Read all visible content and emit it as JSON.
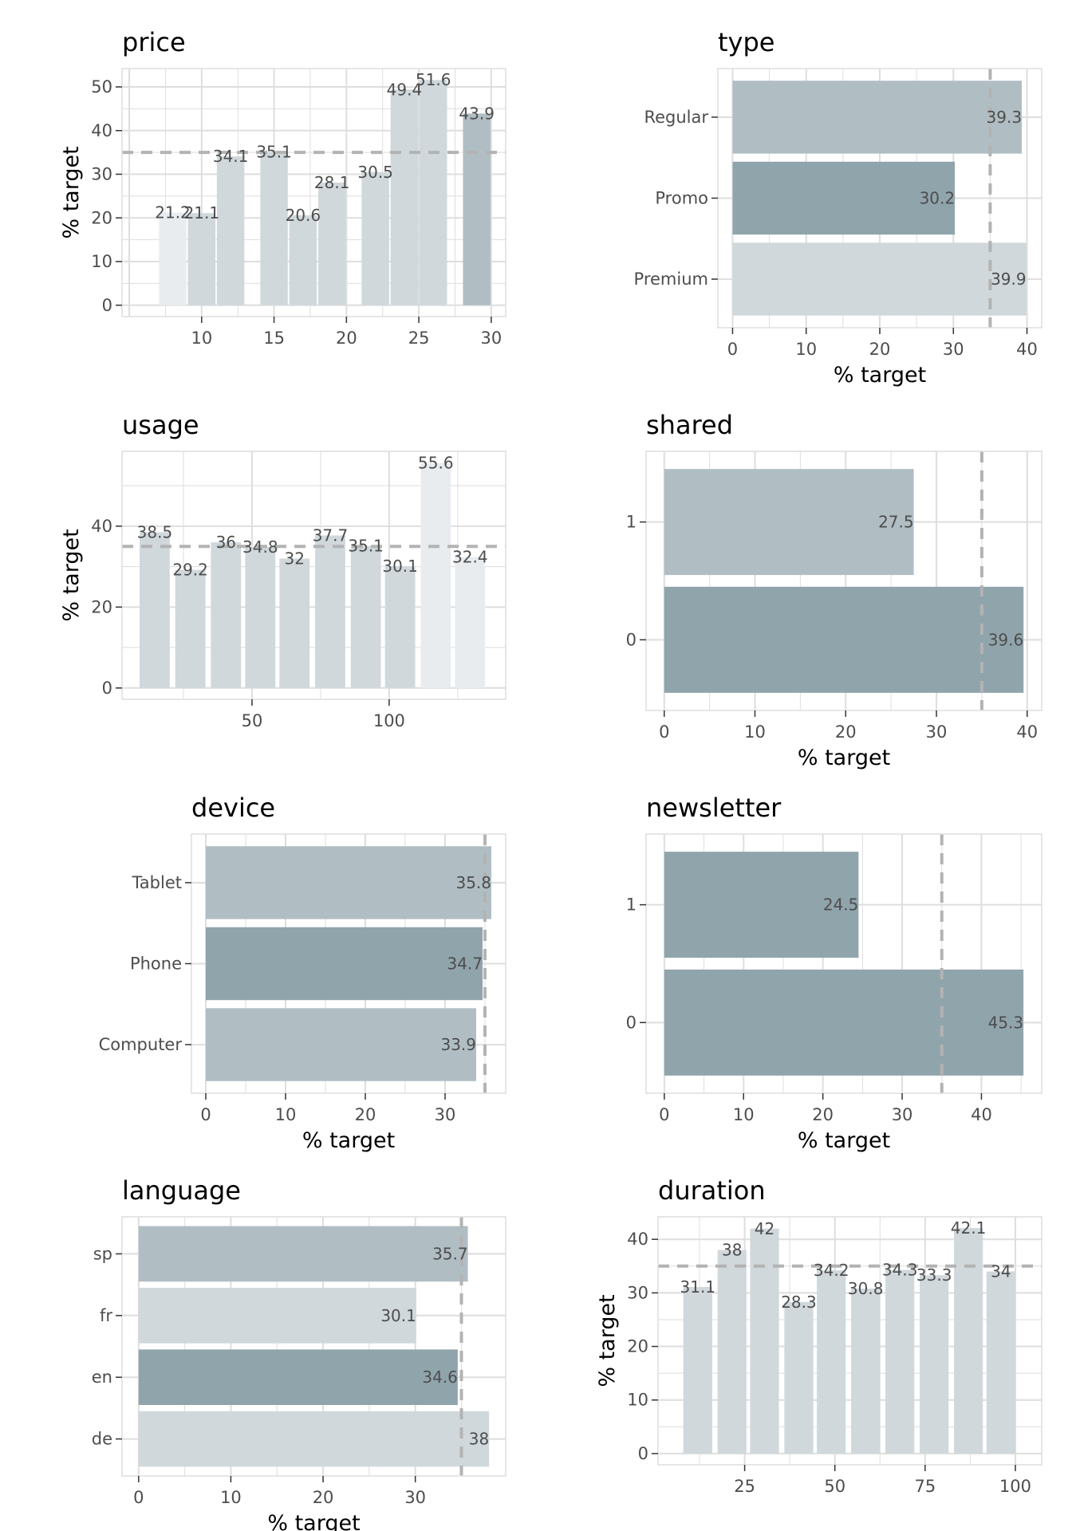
{
  "colors": {
    "light": "#e8ecef",
    "mid": "#d0d8dc",
    "mid2": "#b0bec4",
    "dark": "#90a4ac",
    "grid": "#dedede",
    "ref_line": "#b3b3b3"
  },
  "chart_data": [
    {
      "id": "price",
      "type": "bar",
      "orientation": "vertical",
      "title": "price",
      "ylabel": "% target",
      "xlabel": "",
      "xlim": [
        4.5,
        31
      ],
      "ylim": [
        -2.6,
        54.2
      ],
      "xticks": [
        10,
        15,
        20,
        25,
        30
      ],
      "yticks": [
        0,
        10,
        20,
        30,
        40,
        50
      ],
      "bar_width": 1.9,
      "reference_line": 35,
      "points": [
        {
          "x": 8.0,
          "value": 21.2,
          "label": "21.2",
          "shade": "light"
        },
        {
          "x": 10.0,
          "value": 21.1,
          "label": "21.1",
          "shade": "mid"
        },
        {
          "x": 12.0,
          "value": 34.1,
          "label": "34.1",
          "shade": "mid"
        },
        {
          "x": 15.0,
          "value": 35.1,
          "label": "35.1",
          "shade": "mid"
        },
        {
          "x": 17.0,
          "value": 20.6,
          "label": "20.6",
          "shade": "mid"
        },
        {
          "x": 19.0,
          "value": 28.1,
          "label": "28.1",
          "shade": "mid"
        },
        {
          "x": 22.0,
          "value": 30.5,
          "label": "30.5",
          "shade": "mid"
        },
        {
          "x": 24.0,
          "value": 49.4,
          "label": "49.4",
          "shade": "mid"
        },
        {
          "x": 26.0,
          "value": 51.6,
          "label": "51.6",
          "shade": "mid"
        },
        {
          "x": 29.0,
          "value": 43.9,
          "label": "43.9",
          "shade": "mid2"
        }
      ]
    },
    {
      "id": "type",
      "type": "bar",
      "orientation": "horizontal",
      "title": "type",
      "xlabel": "% target",
      "ylabel": "",
      "xlim": [
        -2,
        42
      ],
      "xticks": [
        0,
        10,
        20,
        30,
        40
      ],
      "reference_line": 35,
      "categories": [
        "Regular",
        "Promo",
        "Premium"
      ],
      "values": [
        39.3,
        30.2,
        39.9
      ],
      "labels": [
        "39.3",
        "30.2",
        "39.9"
      ],
      "shades": [
        "mid2",
        "dark",
        "mid"
      ]
    },
    {
      "id": "usage",
      "type": "bar",
      "orientation": "vertical",
      "title": "usage",
      "ylabel": "% target",
      "xlabel": "",
      "xlim": [
        2.6,
        142.5
      ],
      "ylim": [
        -2.8,
        58.5
      ],
      "xticks": [
        50,
        100
      ],
      "yticks": [
        0,
        20,
        40
      ],
      "bar_width": 11,
      "reference_line": 35,
      "points": [
        {
          "x": 14.5,
          "value": 38.5,
          "label": "38.5",
          "shade": "mid"
        },
        {
          "x": 27.5,
          "value": 29.2,
          "label": "29.2",
          "shade": "mid"
        },
        {
          "x": 40.5,
          "value": 36,
          "label": "36",
          "shade": "mid"
        },
        {
          "x": 53.0,
          "value": 34.8,
          "label": "34.8",
          "shade": "mid"
        },
        {
          "x": 65.5,
          "value": 32,
          "label": "32",
          "shade": "mid"
        },
        {
          "x": 78.5,
          "value": 37.7,
          "label": "37.7",
          "shade": "mid"
        },
        {
          "x": 91.5,
          "value": 35.1,
          "label": "35.1",
          "shade": "mid"
        },
        {
          "x": 104.0,
          "value": 30.1,
          "label": "30.1",
          "shade": "mid"
        },
        {
          "x": 117.0,
          "value": 55.6,
          "label": "55.6",
          "shade": "light"
        },
        {
          "x": 129.5,
          "value": 32.4,
          "label": "32.4",
          "shade": "light"
        }
      ]
    },
    {
      "id": "shared",
      "type": "bar",
      "orientation": "horizontal",
      "title": "shared",
      "xlabel": "% target",
      "ylabel": "",
      "xlim": [
        -2,
        41.6
      ],
      "xticks": [
        0,
        10,
        20,
        30,
        40
      ],
      "reference_line": 35,
      "categories": [
        "1",
        "0"
      ],
      "values": [
        27.5,
        39.6
      ],
      "labels": [
        "27.5",
        "39.6"
      ],
      "shades": [
        "mid2",
        "dark"
      ]
    },
    {
      "id": "device",
      "type": "bar",
      "orientation": "horizontal",
      "title": "device",
      "xlabel": "% target",
      "ylabel": "",
      "xlim": [
        -1.8,
        37.6
      ],
      "xticks": [
        0,
        10,
        20,
        30
      ],
      "reference_line": 35,
      "categories": [
        "Tablet",
        "Phone",
        "Computer"
      ],
      "values": [
        35.8,
        34.7,
        33.9
      ],
      "labels": [
        "35.8",
        "34.7",
        "33.9"
      ],
      "shades": [
        "mid2",
        "dark",
        "mid2"
      ]
    },
    {
      "id": "newsletter",
      "type": "bar",
      "orientation": "horizontal",
      "title": "newsletter",
      "xlabel": "% target",
      "ylabel": "",
      "xlim": [
        -2.3,
        47.6
      ],
      "xticks": [
        0,
        10,
        20,
        30,
        40
      ],
      "reference_line": 35,
      "categories": [
        "1",
        "0"
      ],
      "values": [
        24.5,
        45.3
      ],
      "labels": [
        "24.5",
        "45.3"
      ],
      "shades": [
        "dark",
        "dark"
      ]
    },
    {
      "id": "language",
      "type": "bar",
      "orientation": "horizontal",
      "title": "language",
      "xlabel": "% target",
      "ylabel": "",
      "xlim": [
        -1.8,
        39.8
      ],
      "xticks": [
        0,
        10,
        20,
        30
      ],
      "reference_line": 35,
      "categories": [
        "sp",
        "fr",
        "en",
        "de"
      ],
      "values": [
        35.7,
        30.1,
        34.6,
        38
      ],
      "labels": [
        "35.7",
        "30.1",
        "34.6",
        "38"
      ],
      "shades": [
        "mid2",
        "mid",
        "dark",
        "mid"
      ]
    },
    {
      "id": "duration",
      "type": "bar",
      "orientation": "vertical",
      "title": "duration",
      "ylabel": "% target",
      "xlabel": "",
      "xlim": [
        1,
        107.3
      ],
      "ylim": [
        -2.1,
        44.2
      ],
      "xticks": [
        25,
        50,
        75,
        100
      ],
      "yticks": [
        0,
        10,
        20,
        30,
        40
      ],
      "bar_width": 8,
      "reference_line": 35,
      "points": [
        {
          "x": 12.0,
          "value": 31.1,
          "label": "31.1",
          "shade": "mid"
        },
        {
          "x": 21.5,
          "value": 38,
          "label": "38",
          "shade": "mid"
        },
        {
          "x": 30.5,
          "value": 42,
          "label": "42",
          "shade": "mid"
        },
        {
          "x": 40.0,
          "value": 28.3,
          "label": "28.3",
          "shade": "mid"
        },
        {
          "x": 49.0,
          "value": 34.2,
          "label": "34.2",
          "shade": "mid"
        },
        {
          "x": 58.5,
          "value": 30.8,
          "label": "30.8",
          "shade": "mid"
        },
        {
          "x": 68.0,
          "value": 34.3,
          "label": "34.3",
          "shade": "mid"
        },
        {
          "x": 77.5,
          "value": 33.3,
          "label": "33.3",
          "shade": "mid"
        },
        {
          "x": 87.0,
          "value": 42.1,
          "label": "42.1",
          "shade": "mid"
        },
        {
          "x": 96.0,
          "value": 34,
          "label": "34",
          "shade": "mid"
        }
      ]
    }
  ]
}
